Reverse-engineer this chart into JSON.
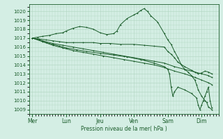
{
  "title": "Pression niveau de la mer( hPa )",
  "bg_color": "#d4eee4",
  "grid_color": "#b0d4c0",
  "line_color": "#1a5c2a",
  "ylim": [
    1008.5,
    1020.8
  ],
  "yticks": [
    1009,
    1010,
    1011,
    1012,
    1013,
    1014,
    1015,
    1016,
    1017,
    1018,
    1019,
    1020
  ],
  "day_labels": [
    "Mer",
    "Lun",
    "Jeu",
    "Ven",
    "Sam",
    "Dim"
  ],
  "day_positions": [
    0.0,
    1.0,
    2.0,
    3.0,
    4.0,
    5.0
  ],
  "xlim": [
    -0.1,
    5.5
  ],
  "lines": [
    {
      "x": [
        0.0,
        0.15,
        0.3,
        0.5,
        0.7,
        0.9,
        1.0,
        1.2,
        1.4,
        1.6,
        1.8,
        2.0,
        2.2,
        2.4,
        2.5,
        2.6,
        2.8,
        3.0,
        3.1,
        3.2,
        3.3,
        3.4,
        3.5,
        3.7,
        3.9,
        4.0,
        4.1,
        4.2,
        4.3,
        4.4,
        4.5,
        4.6,
        4.7,
        4.8,
        4.85,
        4.9,
        5.0,
        5.1,
        5.15,
        5.2,
        5.3
      ],
      "y": [
        1017.0,
        1017.1,
        1017.2,
        1017.3,
        1017.5,
        1017.6,
        1017.8,
        1018.1,
        1018.3,
        1018.2,
        1018.0,
        1017.6,
        1017.4,
        1017.5,
        1017.8,
        1018.5,
        1019.2,
        1019.6,
        1019.8,
        1020.1,
        1020.3,
        1020.0,
        1019.5,
        1018.8,
        1017.5,
        1016.8,
        1016.3,
        1015.5,
        1014.8,
        1014.0,
        1013.5,
        1013.2,
        1012.8,
        1012.3,
        1011.8,
        1011.2,
        1010.5,
        1010.0,
        1009.8,
        1009.3,
        1009.0
      ]
    },
    {
      "x": [
        0.0,
        0.2,
        0.4,
        0.6,
        0.8,
        1.0,
        1.2,
        1.5,
        1.8,
        2.0,
        2.3,
        2.6,
        3.0,
        3.3,
        3.6,
        3.9,
        4.0,
        4.1,
        4.2,
        4.3,
        4.5,
        4.7,
        4.9,
        5.0,
        5.1,
        5.2,
        5.3
      ],
      "y": [
        1017.0,
        1016.9,
        1016.8,
        1016.7,
        1016.6,
        1016.5,
        1016.5,
        1016.5,
        1016.5,
        1016.4,
        1016.4,
        1016.3,
        1016.3,
        1016.2,
        1016.1,
        1016.0,
        1015.5,
        1015.2,
        1014.8,
        1014.3,
        1013.8,
        1013.4,
        1013.0,
        1013.1,
        1013.3,
        1013.2,
        1013.0
      ]
    },
    {
      "x": [
        0.0,
        0.3,
        0.6,
        0.9,
        1.2,
        1.5,
        1.8,
        2.1,
        2.4,
        2.7,
        3.0,
        3.3,
        3.6,
        3.9,
        4.2,
        4.5,
        4.8,
        5.0,
        5.2,
        5.3
      ],
      "y": [
        1017.0,
        1016.7,
        1016.4,
        1016.2,
        1016.0,
        1015.8,
        1015.6,
        1015.4,
        1015.2,
        1015.0,
        1014.8,
        1014.6,
        1014.4,
        1014.2,
        1013.8,
        1013.5,
        1013.2,
        1013.0,
        1012.8,
        1012.6
      ]
    },
    {
      "x": [
        0.0,
        0.3,
        0.6,
        0.9,
        1.2,
        1.5,
        1.8,
        2.1,
        2.4,
        2.7,
        3.0,
        3.3,
        3.6,
        3.9,
        4.2,
        4.5,
        4.8,
        5.0,
        5.2,
        5.3
      ],
      "y": [
        1017.0,
        1016.6,
        1016.2,
        1015.9,
        1015.6,
        1015.4,
        1015.2,
        1015.0,
        1014.8,
        1014.6,
        1014.4,
        1014.2,
        1014.0,
        1013.7,
        1013.3,
        1013.0,
        1012.6,
        1012.3,
        1012.0,
        1011.8
      ]
    },
    {
      "x": [
        0.0,
        0.2,
        0.4,
        0.6,
        0.8,
        1.0,
        1.3,
        1.6,
        2.0,
        2.4,
        2.8,
        3.2,
        3.6,
        3.9,
        4.0,
        4.05,
        4.1,
        4.15,
        4.2,
        4.3,
        4.5,
        4.7,
        4.85,
        4.9,
        4.95,
        5.0,
        5.05,
        5.1,
        5.15,
        5.2,
        5.25,
        5.3
      ],
      "y": [
        1017.0,
        1016.8,
        1016.5,
        1016.3,
        1016.1,
        1015.9,
        1015.7,
        1015.5,
        1015.3,
        1015.1,
        1014.9,
        1014.6,
        1014.2,
        1013.8,
        1013.5,
        1013.0,
        1011.5,
        1010.5,
        1011.0,
        1011.5,
        1011.2,
        1010.8,
        1010.3,
        1009.5,
        1009.0,
        1009.5,
        1010.0,
        1010.5,
        1011.0,
        1011.5,
        1010.0,
        1009.2
      ]
    }
  ]
}
